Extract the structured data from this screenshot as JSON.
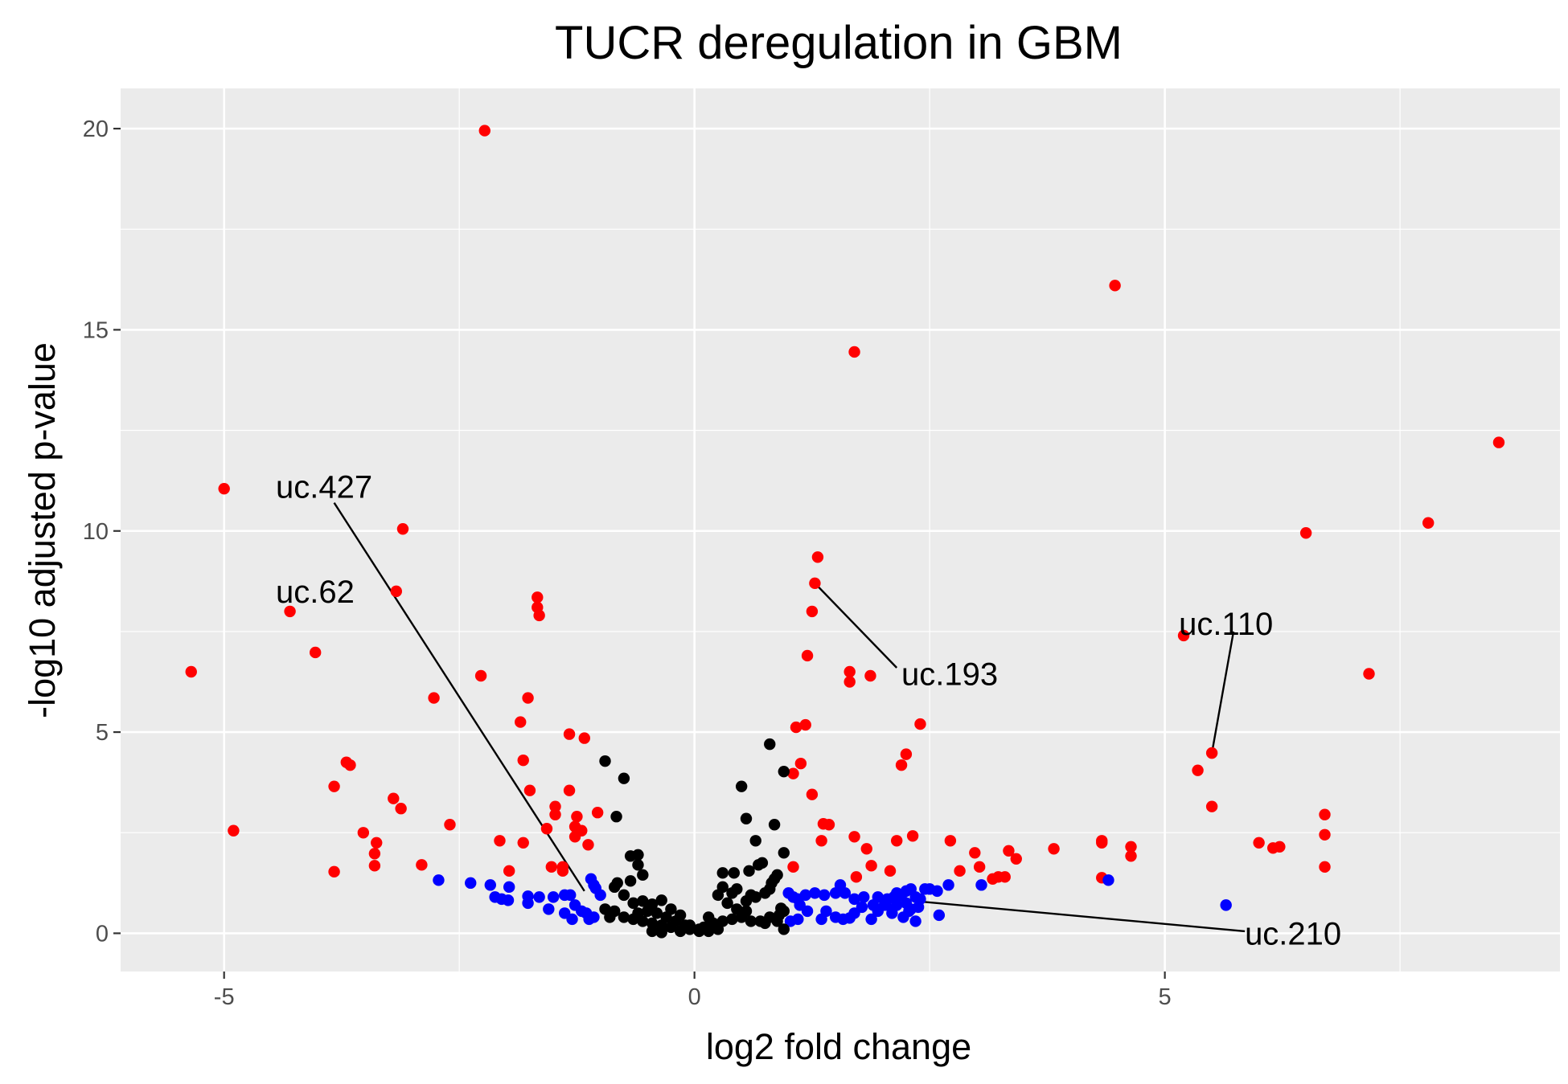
{
  "chart_data": {
    "type": "scatter",
    "title": "TUCR deregulation in GBM",
    "xlabel": "log2 fold change",
    "ylabel": "-log10 adjusted p-value",
    "xlim": [
      -6.1,
      9.2
    ],
    "ylim": [
      -0.95,
      21.0
    ],
    "x_ticks": [
      -5,
      0,
      5
    ],
    "x_tick_labels": [
      "-5",
      "0",
      "5"
    ],
    "y_ticks": [
      0,
      5,
      10,
      15,
      20
    ],
    "y_tick_labels": [
      "0",
      "5",
      "10",
      "15",
      "20"
    ],
    "x_minor_gridlines": [
      -2.5,
      2.5,
      7.5
    ],
    "y_minor_gridlines": [
      2.5,
      7.5,
      12.5,
      17.5
    ],
    "grid": true,
    "legend": "none",
    "colors": {
      "panel_bg": "#ebebeb",
      "grid": "#ffffff",
      "red": "#ff0000",
      "blue": "#0000ff",
      "black": "#000000",
      "tick_text": "#4d4d4d",
      "tick_mark": "#333333"
    },
    "series": [
      {
        "color": "#ff0000",
        "points": [
          [
            -2.23,
            19.95
          ],
          [
            4.47,
            16.1
          ],
          [
            1.7,
            14.45
          ],
          [
            8.55,
            12.2
          ],
          [
            -5.0,
            11.05
          ],
          [
            7.8,
            10.2
          ],
          [
            6.5,
            9.95
          ],
          [
            -3.1,
            10.05
          ],
          [
            1.31,
            9.35
          ],
          [
            1.28,
            8.7
          ],
          [
            -1.67,
            8.35
          ],
          [
            -1.67,
            8.1
          ],
          [
            -1.65,
            7.9
          ],
          [
            -3.17,
            8.5
          ],
          [
            1.25,
            8.0
          ],
          [
            5.2,
            7.4
          ],
          [
            -4.3,
            8.0
          ],
          [
            -4.03,
            6.98
          ],
          [
            -5.35,
            6.5
          ],
          [
            1.2,
            6.9
          ],
          [
            1.65,
            6.5
          ],
          [
            1.65,
            6.25
          ],
          [
            1.87,
            6.4
          ],
          [
            7.17,
            6.45
          ],
          [
            -2.27,
            6.4
          ],
          [
            -2.77,
            5.85
          ],
          [
            -1.77,
            5.85
          ],
          [
            -1.85,
            5.25
          ],
          [
            1.08,
            5.12
          ],
          [
            1.18,
            5.18
          ],
          [
            2.4,
            5.2
          ],
          [
            -1.33,
            4.95
          ],
          [
            -1.17,
            4.85
          ],
          [
            2.25,
            4.45
          ],
          [
            2.2,
            4.18
          ],
          [
            5.5,
            4.48
          ],
          [
            1.13,
            4.22
          ],
          [
            1.05,
            3.97
          ],
          [
            5.35,
            4.05
          ],
          [
            -3.7,
            4.25
          ],
          [
            -3.66,
            4.18
          ],
          [
            -3.83,
            3.65
          ],
          [
            -1.82,
            4.3
          ],
          [
            -1.75,
            3.55
          ],
          [
            -1.33,
            3.55
          ],
          [
            1.25,
            3.45
          ],
          [
            -3.2,
            3.35
          ],
          [
            -3.12,
            3.1
          ],
          [
            -1.48,
            3.15
          ],
          [
            -1.48,
            2.95
          ],
          [
            -1.03,
            3.0
          ],
          [
            -1.25,
            2.9
          ],
          [
            5.5,
            3.15
          ],
          [
            6.7,
            2.95
          ],
          [
            -2.6,
            2.7
          ],
          [
            -1.27,
            2.65
          ],
          [
            -1.2,
            2.55
          ],
          [
            -1.57,
            2.6
          ],
          [
            1.37,
            2.72
          ],
          [
            1.43,
            2.7
          ],
          [
            -3.52,
            2.5
          ],
          [
            -4.9,
            2.55
          ],
          [
            -2.07,
            2.3
          ],
          [
            -1.82,
            2.25
          ],
          [
            -1.27,
            2.4
          ],
          [
            -1.13,
            2.2
          ],
          [
            1.35,
            2.3
          ],
          [
            1.7,
            2.4
          ],
          [
            1.83,
            2.1
          ],
          [
            2.15,
            2.3
          ],
          [
            2.32,
            2.42
          ],
          [
            2.72,
            2.3
          ],
          [
            2.98,
            2.0
          ],
          [
            3.34,
            2.05
          ],
          [
            3.42,
            1.85
          ],
          [
            3.82,
            2.1
          ],
          [
            4.33,
            2.25
          ],
          [
            4.33,
            2.3
          ],
          [
            4.64,
            2.15
          ],
          [
            4.64,
            1.92
          ],
          [
            6.0,
            2.25
          ],
          [
            6.15,
            2.12
          ],
          [
            6.22,
            2.15
          ],
          [
            6.7,
            2.45
          ],
          [
            -3.38,
            2.25
          ],
          [
            -3.4,
            1.98
          ],
          [
            -3.4,
            1.68
          ],
          [
            -2.9,
            1.7
          ],
          [
            -1.52,
            1.65
          ],
          [
            -1.97,
            1.55
          ],
          [
            -1.4,
            1.55
          ],
          [
            -1.4,
            1.65
          ],
          [
            -3.83,
            1.53
          ],
          [
            1.05,
            1.65
          ],
          [
            1.72,
            1.4
          ],
          [
            1.88,
            1.68
          ],
          [
            2.08,
            1.55
          ],
          [
            2.82,
            1.55
          ],
          [
            3.03,
            1.65
          ],
          [
            3.17,
            1.35
          ],
          [
            3.23,
            1.4
          ],
          [
            3.3,
            1.4
          ],
          [
            4.33,
            1.38
          ],
          [
            6.7,
            1.65
          ]
        ]
      },
      {
        "color": "#0000ff",
        "points": [
          [
            -2.72,
            1.32
          ],
          [
            -2.38,
            1.25
          ],
          [
            -2.17,
            1.2
          ],
          [
            -1.97,
            1.15
          ],
          [
            -2.12,
            0.9
          ],
          [
            -2.05,
            0.85
          ],
          [
            -1.98,
            0.82
          ],
          [
            -1.77,
            0.92
          ],
          [
            -1.77,
            0.75
          ],
          [
            -1.65,
            0.9
          ],
          [
            -1.5,
            0.9
          ],
          [
            -1.55,
            0.6
          ],
          [
            -1.38,
            0.95
          ],
          [
            -1.32,
            0.95
          ],
          [
            -1.27,
            0.7
          ],
          [
            -1.2,
            0.55
          ],
          [
            -1.15,
            0.5
          ],
          [
            -1.1,
            1.35
          ],
          [
            -1.07,
            1.2
          ],
          [
            -1.05,
            1.12
          ],
          [
            -1.0,
            0.95
          ],
          [
            -1.38,
            0.5
          ],
          [
            -1.3,
            0.35
          ],
          [
            -1.07,
            0.4
          ],
          [
            -1.12,
            0.35
          ],
          [
            1.0,
            1.0
          ],
          [
            1.05,
            0.9
          ],
          [
            1.1,
            0.85
          ],
          [
            1.12,
            0.7
          ],
          [
            1.18,
            0.95
          ],
          [
            1.28,
            1.0
          ],
          [
            1.38,
            0.95
          ],
          [
            1.55,
            1.2
          ],
          [
            1.5,
            1.0
          ],
          [
            1.6,
            1.0
          ],
          [
            1.7,
            0.85
          ],
          [
            1.8,
            0.9
          ],
          [
            1.9,
            0.7
          ],
          [
            1.95,
            0.9
          ],
          [
            2.05,
            0.85
          ],
          [
            2.12,
            0.9
          ],
          [
            2.15,
            1.0
          ],
          [
            2.2,
            0.95
          ],
          [
            2.25,
            1.05
          ],
          [
            2.3,
            1.1
          ],
          [
            2.35,
            0.9
          ],
          [
            2.45,
            1.1
          ],
          [
            2.5,
            1.1
          ],
          [
            2.58,
            1.05
          ],
          [
            2.7,
            1.2
          ],
          [
            1.02,
            0.3
          ],
          [
            1.1,
            0.35
          ],
          [
            1.2,
            0.55
          ],
          [
            1.35,
            0.35
          ],
          [
            1.4,
            0.55
          ],
          [
            1.5,
            0.4
          ],
          [
            1.58,
            0.35
          ],
          [
            1.65,
            0.38
          ],
          [
            1.7,
            0.5
          ],
          [
            1.78,
            0.65
          ],
          [
            1.88,
            0.35
          ],
          [
            1.95,
            0.55
          ],
          [
            2.02,
            0.7
          ],
          [
            2.1,
            0.6
          ],
          [
            2.15,
            0.7
          ],
          [
            2.22,
            0.4
          ],
          [
            2.28,
            0.55
          ],
          [
            2.35,
            0.3
          ],
          [
            2.38,
            0.65
          ],
          [
            2.1,
            0.5
          ],
          [
            2.25,
            0.75
          ],
          [
            2.3,
            0.6
          ],
          [
            2.4,
            0.85
          ],
          [
            2.6,
            0.45
          ],
          [
            3.05,
            1.2
          ],
          [
            4.4,
            1.32
          ],
          [
            5.65,
            0.7
          ]
        ]
      },
      {
        "color": "#000000",
        "points": [
          [
            -0.95,
            4.28
          ],
          [
            -0.75,
            3.85
          ],
          [
            -0.83,
            2.9
          ],
          [
            -0.6,
            1.95
          ],
          [
            -0.68,
            1.92
          ],
          [
            -0.6,
            1.7
          ],
          [
            -0.55,
            1.45
          ],
          [
            -0.68,
            1.3
          ],
          [
            -0.82,
            1.25
          ],
          [
            -0.85,
            1.15
          ],
          [
            -0.75,
            0.95
          ],
          [
            -0.65,
            0.75
          ],
          [
            -0.55,
            0.8
          ],
          [
            -0.45,
            0.72
          ],
          [
            -0.35,
            0.82
          ],
          [
            -0.25,
            0.6
          ],
          [
            -0.15,
            0.45
          ],
          [
            -0.6,
            0.5
          ],
          [
            -0.5,
            0.55
          ],
          [
            -0.4,
            0.5
          ],
          [
            -0.3,
            0.4
          ],
          [
            -0.2,
            0.3
          ],
          [
            -0.1,
            0.2
          ],
          [
            -0.05,
            0.1
          ],
          [
            -0.35,
            0.2
          ],
          [
            -0.25,
            0.15
          ],
          [
            -0.45,
            0.25
          ],
          [
            -0.55,
            0.3
          ],
          [
            -0.65,
            0.35
          ],
          [
            -0.75,
            0.4
          ],
          [
            -0.9,
            0.4
          ],
          [
            -0.95,
            0.6
          ],
          [
            -0.85,
            0.55
          ],
          [
            -0.45,
            0.05
          ],
          [
            -0.35,
            0.02
          ],
          [
            -0.15,
            0.05
          ],
          [
            0.8,
            4.7
          ],
          [
            0.95,
            4.02
          ],
          [
            0.5,
            3.65
          ],
          [
            0.55,
            2.85
          ],
          [
            0.65,
            2.3
          ],
          [
            0.85,
            2.7
          ],
          [
            0.95,
            2.0
          ],
          [
            0.72,
            1.75
          ],
          [
            0.68,
            1.7
          ],
          [
            0.58,
            1.55
          ],
          [
            0.42,
            1.5
          ],
          [
            0.3,
            1.5
          ],
          [
            0.88,
            1.45
          ],
          [
            0.85,
            1.35
          ],
          [
            0.82,
            1.25
          ],
          [
            0.8,
            1.1
          ],
          [
            0.75,
            1.0
          ],
          [
            0.65,
            0.9
          ],
          [
            0.6,
            0.95
          ],
          [
            0.55,
            0.8
          ],
          [
            0.45,
            1.1
          ],
          [
            0.4,
            1.0
          ],
          [
            0.3,
            1.15
          ],
          [
            0.25,
            0.95
          ],
          [
            0.35,
            0.75
          ],
          [
            0.45,
            0.6
          ],
          [
            0.55,
            0.55
          ],
          [
            0.5,
            0.4
          ],
          [
            0.4,
            0.35
          ],
          [
            0.3,
            0.3
          ],
          [
            0.2,
            0.25
          ],
          [
            0.1,
            0.15
          ],
          [
            0.05,
            0.05
          ],
          [
            0.15,
            0.05
          ],
          [
            0.25,
            0.1
          ],
          [
            0.6,
            0.3
          ],
          [
            0.7,
            0.3
          ],
          [
            0.8,
            0.4
          ],
          [
            0.9,
            0.45
          ],
          [
            0.95,
            0.55
          ],
          [
            0.92,
            0.62
          ],
          [
            0.95,
            0.1
          ],
          [
            0.75,
            0.25
          ],
          [
            0.88,
            0.3
          ],
          [
            0.15,
            0.4
          ],
          [
            0.05,
            0.1
          ],
          [
            -0.05,
            0.2
          ]
        ]
      }
    ],
    "annotations": [
      {
        "text": "uc.427",
        "label_x": -4.45,
        "label_y": 11.1,
        "line_from": [
          -3.83,
          10.7
        ],
        "line_to": [
          -1.17,
          1.05
        ]
      },
      {
        "text": "uc.62",
        "label_x": -4.45,
        "label_y": 8.5,
        "line_from": null,
        "line_to": null
      },
      {
        "text": "uc.193",
        "label_x": 2.2,
        "label_y": 6.45,
        "line_from": [
          1.28,
          8.7
        ],
        "line_to": [
          2.15,
          6.6
        ]
      },
      {
        "text": "uc.110",
        "label_x": 5.15,
        "label_y": 7.7,
        "line_from": [
          5.73,
          7.5
        ],
        "line_to": [
          5.5,
          4.48
        ]
      },
      {
        "text": "uc.210",
        "label_x": 5.85,
        "label_y": 0.0,
        "line_from": [
          2.35,
          0.8
        ],
        "line_to": [
          5.85,
          0.05
        ]
      }
    ]
  }
}
